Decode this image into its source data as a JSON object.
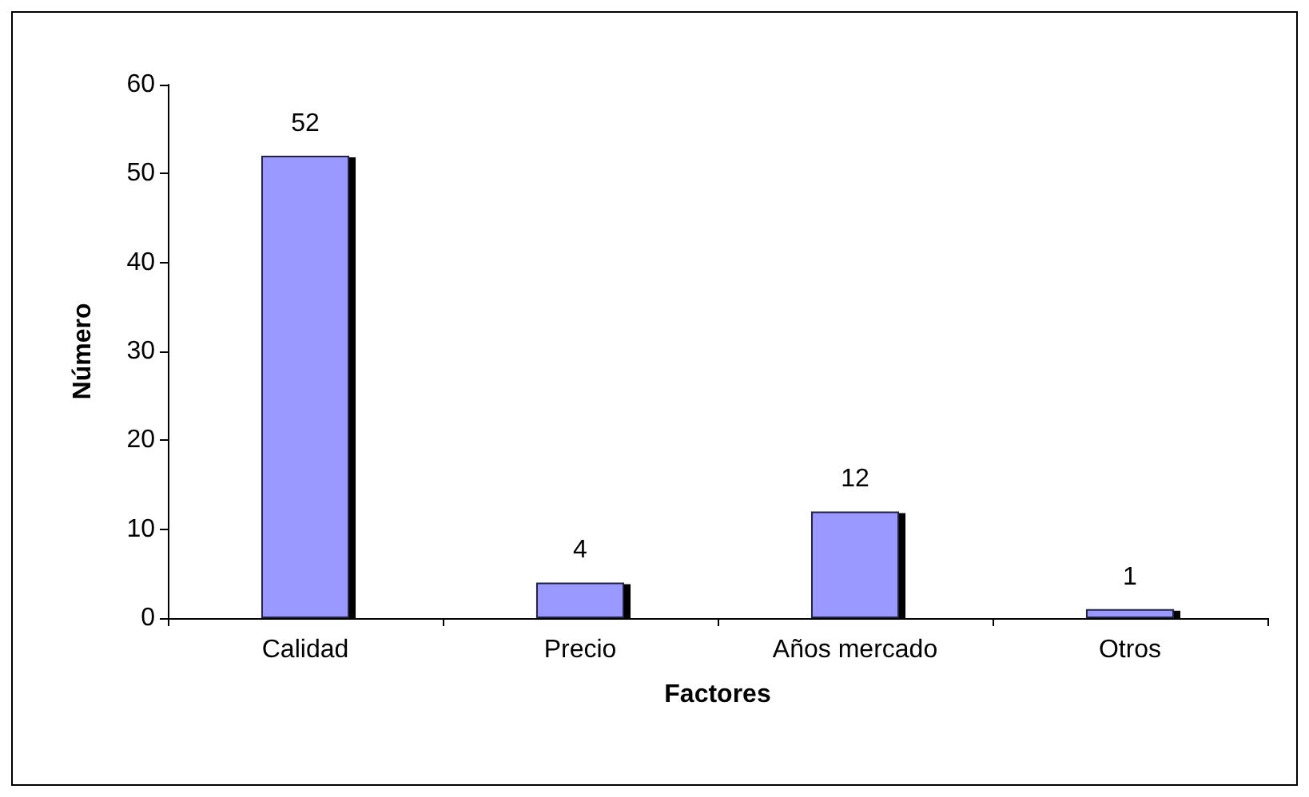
{
  "chart_data": {
    "type": "bar",
    "xlabel": "Factores",
    "ylabel": "Número",
    "categories": [
      "Calidad",
      "Precio",
      "Años mercado",
      "Otros"
    ],
    "values": [
      52,
      4,
      12,
      1
    ],
    "color": "#9999ff",
    "ylim": [
      0,
      60
    ],
    "yticks": [
      0,
      10,
      20,
      30,
      40,
      50,
      60
    ],
    "grid": false,
    "data_labels": true
  }
}
